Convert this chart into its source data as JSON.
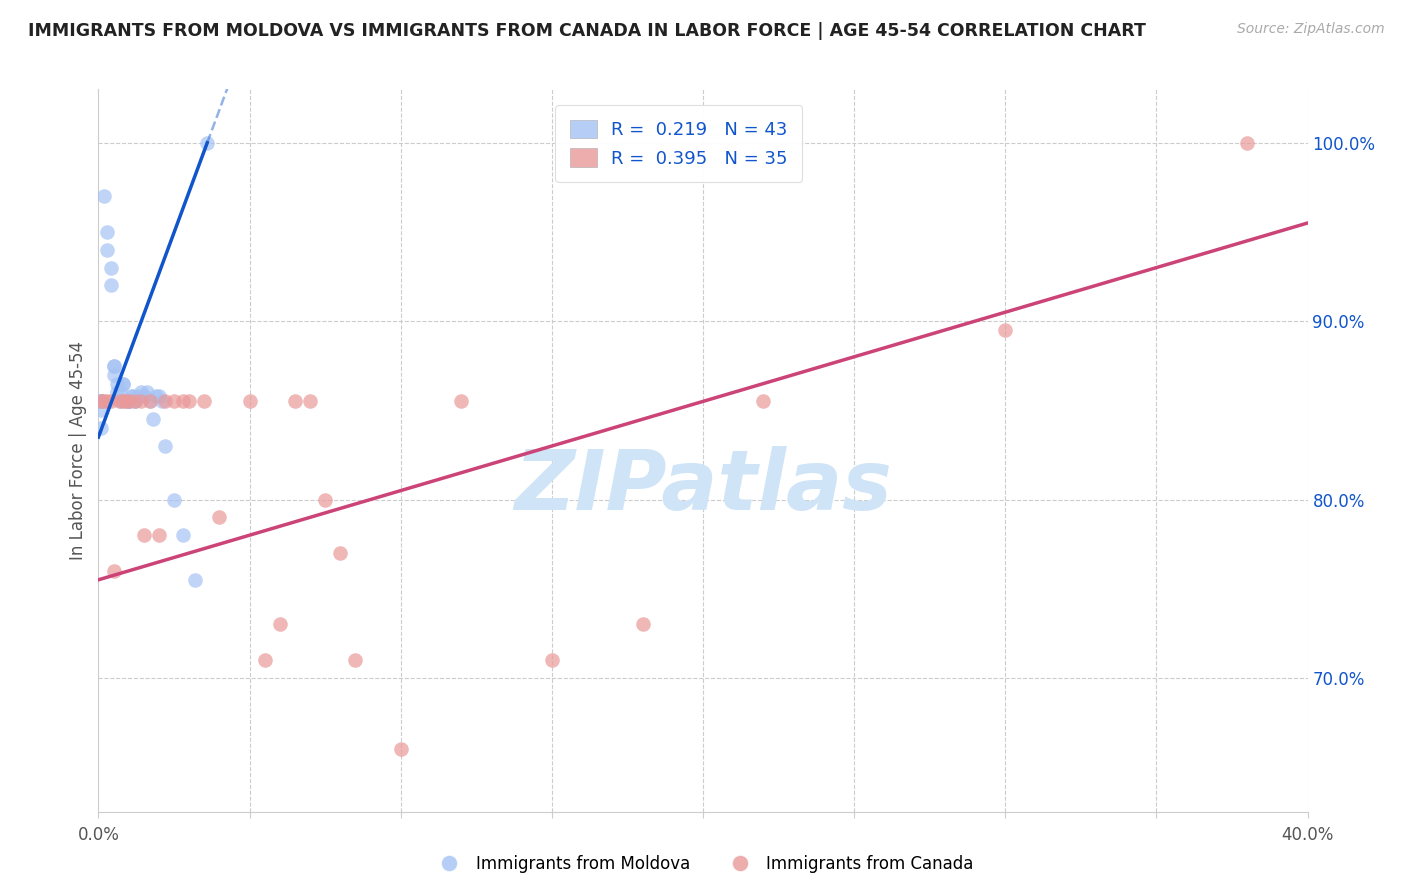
{
  "title": "IMMIGRANTS FROM MOLDOVA VS IMMIGRANTS FROM CANADA IN LABOR FORCE | AGE 45-54 CORRELATION CHART",
  "source": "Source: ZipAtlas.com",
  "ylabel": "In Labor Force | Age 45-54",
  "xlim": [
    0.0,
    0.4
  ],
  "ylim": [
    0.625,
    1.03
  ],
  "xticks": [
    0.0,
    0.05,
    0.1,
    0.15,
    0.2,
    0.25,
    0.3,
    0.35,
    0.4
  ],
  "xtick_labels": [
    "0.0%",
    "",
    "",
    "",
    "",
    "",
    "",
    "",
    "40.0%"
  ],
  "ytick_labels_right": [
    "100.0%",
    "90.0%",
    "80.0%",
    "70.0%"
  ],
  "yticks_right": [
    1.0,
    0.9,
    0.8,
    0.7
  ],
  "moldova_R": 0.219,
  "moldova_N": 43,
  "canada_R": 0.395,
  "canada_N": 35,
  "moldova_color": "#a4c2f4",
  "canada_color": "#ea9999",
  "trendline_moldova_color": "#1155cc",
  "trendline_canada_color": "#cc4477",
  "background_color": "#ffffff",
  "grid_color": "#cccccc",
  "title_color": "#222222",
  "source_color": "#aaaaaa",
  "watermark_text": "ZIPatlas",
  "watermark_color": "#d0e4f7",
  "legend_label_moldova": "Immigrants from Moldova",
  "legend_label_canada": "Immigrants from Canada",
  "moldova_x": [
    0.002,
    0.003,
    0.003,
    0.004,
    0.004,
    0.005,
    0.005,
    0.005,
    0.006,
    0.006,
    0.007,
    0.007,
    0.008,
    0.008,
    0.009,
    0.01,
    0.01,
    0.01,
    0.011,
    0.011,
    0.012,
    0.012,
    0.013,
    0.014,
    0.015,
    0.016,
    0.017,
    0.018,
    0.019,
    0.02,
    0.021,
    0.022,
    0.025,
    0.028,
    0.032,
    0.036,
    0.001,
    0.001,
    0.001,
    0.001,
    0.001,
    0.001,
    0.001
  ],
  "moldova_y": [
    0.97,
    0.94,
    0.95,
    0.93,
    0.92,
    0.875,
    0.875,
    0.87,
    0.865,
    0.86,
    0.86,
    0.855,
    0.865,
    0.865,
    0.855,
    0.855,
    0.855,
    0.855,
    0.858,
    0.858,
    0.855,
    0.855,
    0.858,
    0.86,
    0.858,
    0.86,
    0.855,
    0.845,
    0.858,
    0.858,
    0.855,
    0.83,
    0.8,
    0.78,
    0.755,
    1.0,
    0.855,
    0.855,
    0.855,
    0.855,
    0.855,
    0.85,
    0.84
  ],
  "canada_x": [
    0.001,
    0.002,
    0.003,
    0.004,
    0.005,
    0.007,
    0.008,
    0.009,
    0.01,
    0.012,
    0.014,
    0.015,
    0.017,
    0.02,
    0.022,
    0.025,
    0.028,
    0.03,
    0.035,
    0.04,
    0.05,
    0.055,
    0.06,
    0.065,
    0.07,
    0.075,
    0.08,
    0.085,
    0.1,
    0.12,
    0.15,
    0.18,
    0.22,
    0.3,
    0.38
  ],
  "canada_y": [
    0.855,
    0.855,
    0.855,
    0.855,
    0.76,
    0.855,
    0.855,
    0.855,
    0.855,
    0.855,
    0.855,
    0.78,
    0.855,
    0.78,
    0.855,
    0.855,
    0.855,
    0.855,
    0.855,
    0.79,
    0.855,
    0.71,
    0.73,
    0.855,
    0.855,
    0.8,
    0.77,
    0.71,
    0.66,
    0.855,
    0.71,
    0.73,
    0.855,
    0.895,
    1.0
  ],
  "trendline_mol_x0": 0.0,
  "trendline_mol_y0": 0.835,
  "trendline_mol_x1": 0.036,
  "trendline_mol_y1": 1.0,
  "trendline_mol_dash_x0": 0.036,
  "trendline_mol_dash_x1": 0.4,
  "trendline_can_x0": 0.0,
  "trendline_can_y0": 0.755,
  "trendline_can_x1": 0.4,
  "trendline_can_y1": 0.955
}
